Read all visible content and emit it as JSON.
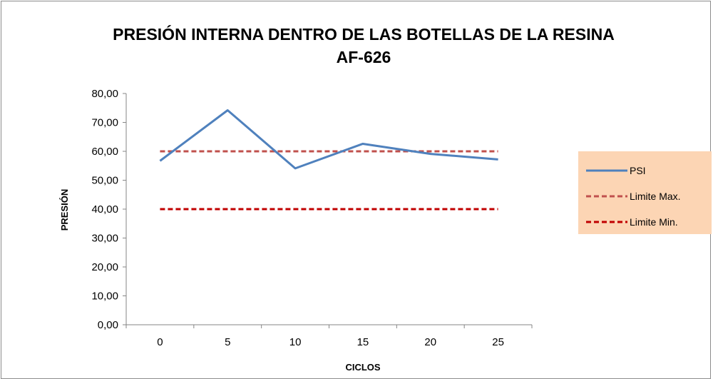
{
  "chart_data": {
    "type": "line",
    "title": "PRESIÓN INTERNA DENTRO DE LAS BOTELLAS DE LA RESINA",
    "subtitle": "AF-626",
    "xlabel": "CICLOS",
    "ylabel": "PRESIÓN",
    "categories": [
      "0",
      "5",
      "10",
      "15",
      "20",
      "25"
    ],
    "ylim": [
      0,
      80
    ],
    "yticks": [
      "0,00",
      "10,00",
      "20,00",
      "30,00",
      "40,00",
      "50,00",
      "60,00",
      "70,00",
      "80,00"
    ],
    "grid": false,
    "legend_position": "right",
    "series": [
      {
        "name": "PSI",
        "values": [
          56.7,
          74.2,
          54.1,
          62.6,
          59.1,
          57.2
        ],
        "color": "#4f81bd",
        "style": "solid"
      },
      {
        "name": "Limite Max.",
        "values": [
          60,
          60,
          60,
          60,
          60,
          60
        ],
        "color": "#c0504d",
        "style": "dashed"
      },
      {
        "name": "Limite Min.",
        "values": [
          40,
          40,
          40,
          40,
          40,
          40
        ],
        "color": "#c00000",
        "style": "dashed"
      }
    ],
    "legend_background": "#fcd5b4"
  }
}
